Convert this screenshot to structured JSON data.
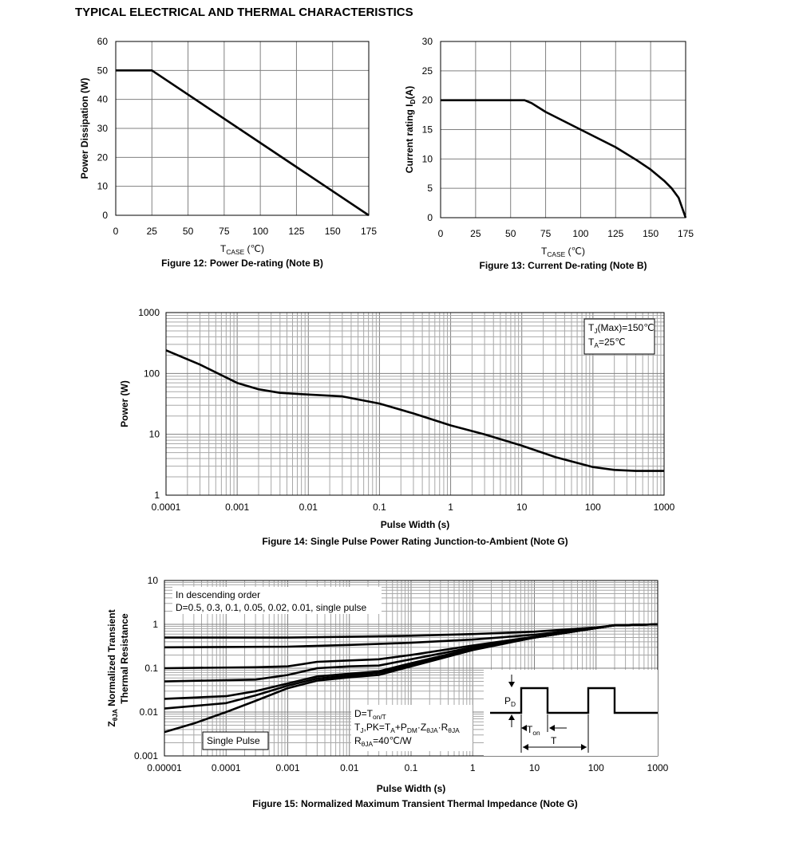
{
  "page": {
    "title": "TYPICAL ELECTRICAL AND THERMAL CHARACTERISTICS"
  },
  "chart_data": [
    {
      "id": "fig12",
      "type": "line",
      "title": "Figure 12: Power De-rating (Note B)",
      "xlabel": "T_CASE (℃)",
      "ylabel": "Power Dissipation (W)",
      "xlim": [
        0,
        175
      ],
      "ylim": [
        0,
        60
      ],
      "xticks": [
        0,
        25,
        50,
        75,
        100,
        125,
        150,
        175
      ],
      "yticks": [
        0,
        10,
        20,
        30,
        40,
        50,
        60
      ],
      "grid": true,
      "series": [
        {
          "x": [
            0,
            25,
            175
          ],
          "y": [
            50,
            50,
            0
          ]
        }
      ]
    },
    {
      "id": "fig13",
      "type": "line",
      "title": "Figure 13: Current De-rating (Note B)",
      "xlabel": "T_CASE (℃)",
      "ylabel": "Current rating I_D(A)",
      "xlim": [
        0,
        175
      ],
      "ylim": [
        0,
        30
      ],
      "xticks": [
        0,
        25,
        50,
        75,
        100,
        125,
        150,
        175
      ],
      "yticks": [
        0,
        5,
        10,
        15,
        20,
        25,
        30
      ],
      "grid": true,
      "series": [
        {
          "x": [
            0,
            60,
            65,
            75,
            100,
            125,
            140,
            150,
            160,
            165,
            170,
            175
          ],
          "y": [
            20,
            20,
            19.5,
            18,
            15,
            12,
            9.8,
            8.2,
            6.2,
            5,
            3.4,
            0
          ]
        }
      ]
    },
    {
      "id": "fig14",
      "type": "line",
      "title": "Figure 14: Single Pulse Power Rating Junction-to-Ambient (Note G)",
      "xlabel": "Pulse Width (s)",
      "ylabel": "Power (W)",
      "xscale": "log",
      "yscale": "log",
      "xlim": [
        0.0001,
        1000
      ],
      "ylim": [
        1,
        1000
      ],
      "xticks": [
        "0.0001",
        "0.001",
        "0.01",
        "0.1",
        "1",
        "10",
        "100",
        "1000"
      ],
      "yticks": [
        "1",
        "10",
        "100",
        "1000"
      ],
      "grid": true,
      "annotation": [
        "T_J(Max)=150℃",
        "T_A=25℃"
      ],
      "series": [
        {
          "x": [
            0.0001,
            0.0003,
            0.001,
            0.002,
            0.004,
            0.01,
            0.03,
            0.1,
            0.3,
            1,
            3,
            10,
            30,
            100,
            200,
            400,
            1000
          ],
          "y": [
            240,
            140,
            70,
            55,
            48,
            45,
            42,
            32,
            22,
            14,
            10,
            6.5,
            4.2,
            2.9,
            2.6,
            2.5,
            2.5
          ]
        }
      ]
    },
    {
      "id": "fig15",
      "type": "line",
      "title": "Figure 15: Normalized Maximum Transient Thermal Impedance (Note G)",
      "xlabel": "Pulse Width (s)",
      "ylabel": "Z_θJA Normalized Transient Thermal Resistance",
      "xscale": "log",
      "yscale": "log",
      "xlim": [
        1e-05,
        1000
      ],
      "ylim": [
        0.001,
        10
      ],
      "xticks": [
        "0.00001",
        "0.0001",
        "0.001",
        "0.01",
        "0.1",
        "1",
        "10",
        "100",
        "1000"
      ],
      "yticks": [
        "0.001",
        "0.01",
        "0.1",
        "1",
        "10"
      ],
      "grid": true,
      "legend_text": [
        "In descending order",
        "D=0.5, 0.3, 0.1, 0.05, 0.02, 0.01, single pulse"
      ],
      "single_pulse_label": "Single Pulse",
      "formula": [
        "D=T_on/T",
        "T_J,PK=T_A+P_DM·Z_θJA·R_θJA",
        "R_θJA=40℃/W"
      ],
      "inset": {
        "pd_label": "P_D",
        "ton_label": "T_on",
        "t_label": "T"
      },
      "series": [
        {
          "name": "D=0.5",
          "x": [
            1e-05,
            0.001,
            0.01,
            0.1,
            1,
            10,
            100,
            200,
            1000
          ],
          "y": [
            0.5,
            0.5,
            0.52,
            0.55,
            0.6,
            0.68,
            0.85,
            0.95,
            1.0
          ]
        },
        {
          "name": "D=0.3",
          "x": [
            1e-05,
            0.001,
            0.01,
            0.1,
            1,
            10,
            100,
            200,
            1000
          ],
          "y": [
            0.3,
            0.31,
            0.34,
            0.38,
            0.45,
            0.58,
            0.83,
            0.95,
            1.0
          ]
        },
        {
          "name": "D=0.1",
          "x": [
            1e-05,
            0.0003,
            0.001,
            0.003,
            0.01,
            0.03,
            0.1,
            1,
            10,
            100,
            200,
            1000
          ],
          "y": [
            0.1,
            0.105,
            0.11,
            0.14,
            0.15,
            0.16,
            0.2,
            0.33,
            0.52,
            0.83,
            0.95,
            1.0
          ]
        },
        {
          "name": "D=0.05",
          "x": [
            1e-05,
            0.0003,
            0.001,
            0.003,
            0.01,
            0.03,
            0.1,
            1,
            10,
            100,
            200,
            1000
          ],
          "y": [
            0.05,
            0.055,
            0.07,
            0.1,
            0.11,
            0.115,
            0.16,
            0.3,
            0.5,
            0.82,
            0.95,
            1.0
          ]
        },
        {
          "name": "D=0.02",
          "x": [
            1e-05,
            0.0001,
            0.0003,
            0.001,
            0.003,
            0.01,
            0.03,
            0.1,
            1,
            10,
            100,
            200,
            1000
          ],
          "y": [
            0.02,
            0.023,
            0.03,
            0.045,
            0.065,
            0.075,
            0.085,
            0.13,
            0.28,
            0.5,
            0.82,
            0.95,
            1.0
          ]
        },
        {
          "name": "D=0.01",
          "x": [
            1e-05,
            0.0001,
            0.0003,
            0.001,
            0.003,
            0.01,
            0.03,
            0.1,
            1,
            10,
            100,
            200,
            1000
          ],
          "y": [
            0.012,
            0.016,
            0.024,
            0.04,
            0.058,
            0.068,
            0.078,
            0.12,
            0.27,
            0.5,
            0.82,
            0.95,
            1.0
          ]
        },
        {
          "name": "single pulse",
          "x": [
            1e-05,
            3e-05,
            0.0001,
            0.0003,
            0.001,
            0.003,
            0.01,
            0.03,
            0.1,
            1,
            10,
            100,
            200,
            1000
          ],
          "y": [
            0.0035,
            0.0055,
            0.01,
            0.018,
            0.035,
            0.052,
            0.062,
            0.07,
            0.11,
            0.26,
            0.5,
            0.82,
            0.95,
            1.0
          ]
        }
      ]
    }
  ]
}
